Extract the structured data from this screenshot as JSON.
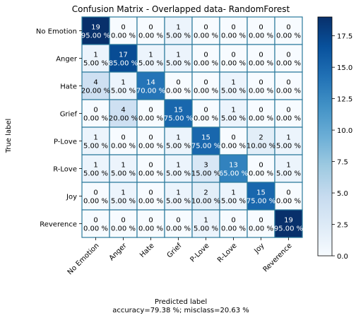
{
  "chart_data": {
    "type": "heatmap",
    "title": "Confusion Matrix - Overlapped data- RandomForest",
    "ylabel": "True label",
    "xlabel": "Predicted label",
    "footer": "accuracy=79.38 %; misclass=20.63 %",
    "labels": [
      "No Emotion",
      "Anger",
      "Hate",
      "Grief",
      "P-Love",
      "R-Love",
      "Joy",
      "Reverence"
    ],
    "counts": [
      [
        19,
        0,
        0,
        1,
        0,
        0,
        0,
        0
      ],
      [
        1,
        17,
        1,
        1,
        0,
        0,
        0,
        0
      ],
      [
        4,
        1,
        14,
        0,
        0,
        1,
        0,
        0
      ],
      [
        0,
        4,
        0,
        15,
        0,
        1,
        0,
        0
      ],
      [
        1,
        0,
        0,
        1,
        15,
        0,
        2,
        1
      ],
      [
        1,
        1,
        0,
        1,
        3,
        13,
        0,
        1
      ],
      [
        0,
        1,
        0,
        1,
        2,
        1,
        15,
        0
      ],
      [
        0,
        0,
        0,
        0,
        1,
        0,
        0,
        19
      ]
    ],
    "percents": [
      [
        "95.00 %",
        "0.00 %",
        "0.00 %",
        "5.00 %",
        "0.00 %",
        "0.00 %",
        "0.00 %",
        "0.00 %"
      ],
      [
        "5.00 %",
        "85.00 %",
        "5.00 %",
        "5.00 %",
        "0.00 %",
        "0.00 %",
        "0.00 %",
        "0.00 %"
      ],
      [
        "20.00 %",
        "5.00 %",
        "70.00 %",
        "0.00 %",
        "0.00 %",
        "5.00 %",
        "0.00 %",
        "0.00 %"
      ],
      [
        "0.00 %",
        "20.00 %",
        "0.00 %",
        "75.00 %",
        "0.00 %",
        "5.00 %",
        "0.00 %",
        "0.00 %"
      ],
      [
        "5.00 %",
        "0.00 %",
        "0.00 %",
        "5.00 %",
        "75.00 %",
        "0.00 %",
        "10.00 %",
        "5.00 %"
      ],
      [
        "5.00 %",
        "5.00 %",
        "0.00 %",
        "5.00 %",
        "15.00 %",
        "65.00 %",
        "0.00 %",
        "5.00 %"
      ],
      [
        "0.00 %",
        "5.00 %",
        "0.00 %",
        "5.00 %",
        "10.00 %",
        "5.00 %",
        "75.00 %",
        "0.00 %"
      ],
      [
        "0.00 %",
        "0.00 %",
        "0.00 %",
        "0.00 %",
        "5.00 %",
        "0.00 %",
        "0.00 %",
        "95.00 %"
      ]
    ],
    "colorbar": {
      "range": [
        0,
        19
      ],
      "ticks": [
        0.0,
        2.5,
        5.0,
        7.5,
        10.0,
        12.5,
        15.0,
        17.5
      ],
      "tick_labels": [
        "0.0",
        "2.5",
        "5.0",
        "7.5",
        "10.0",
        "12.5",
        "15.0",
        "17.5"
      ]
    },
    "colormap": "Blues",
    "grid": true
  },
  "colors": {
    "cmap_low": "#f7fbff",
    "cmap_high": "#08306b",
    "grid_line": "#2b7a9b",
    "text_dark": "#000000",
    "text_light": "#ffffff"
  }
}
